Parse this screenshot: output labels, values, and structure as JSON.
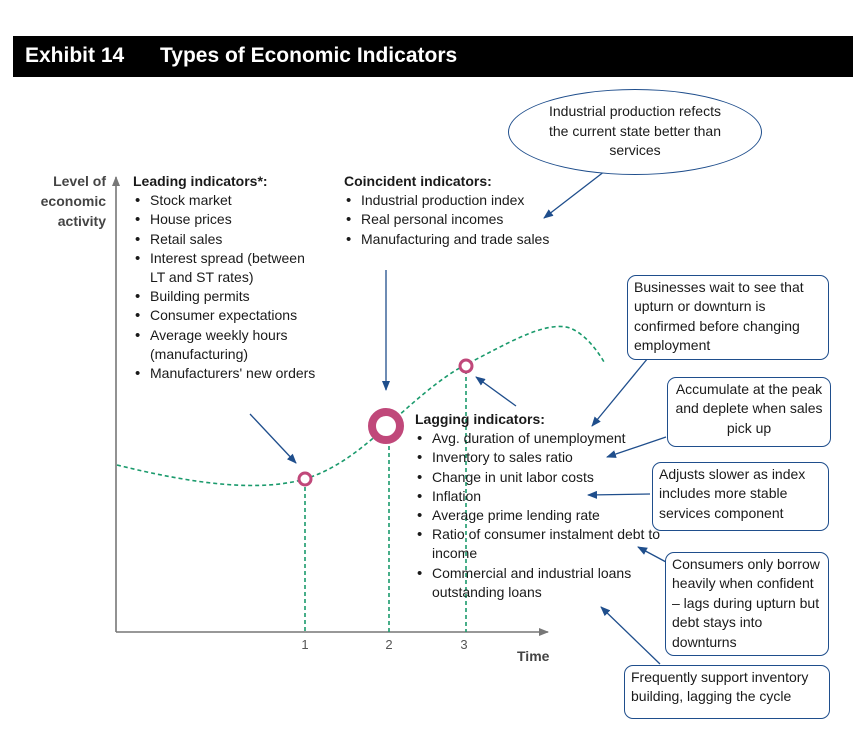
{
  "exhibit": {
    "number": "Exhibit 14",
    "title": "Types of Economic Indicators"
  },
  "y_axis_label": [
    "Level of",
    "economic",
    "activity"
  ],
  "x_axis_label": "Time",
  "x_ticks": [
    "1",
    "2",
    "3"
  ],
  "leading": {
    "title": "Leading indicators*:",
    "items": [
      "Stock market",
      "House prices",
      "Retail sales",
      "Interest spread (between LT and ST rates)",
      "Building permits",
      "Consumer expectations",
      "Average weekly hours (manufacturing)",
      "Manufacturers' new orders"
    ]
  },
  "coincident": {
    "title": "Coincident indicators:",
    "items": [
      "Industrial production index",
      "Real personal incomes",
      "Manufacturing and trade sales"
    ]
  },
  "lagging": {
    "title": "Lagging indicators:",
    "items": [
      "Avg. duration of unemployment",
      "Inventory to sales ratio",
      "Change in unit labor costs",
      "Inflation",
      "Average prime lending rate",
      "Ratio of consumer instalment debt to income",
      "Commercial and industrial loans outstanding loans"
    ]
  },
  "callouts": {
    "bubble": "Industrial production refects the current state better than services",
    "businesses_wait": "Businesses wait to see that upturn or downturn is confirmed before changing employment",
    "accumulate": "Accumulate at the peak and deplete when sales pick up",
    "adjusts_slower": "Adjusts slower as index includes more stable services component",
    "consumers": "Consumers only borrow heavily when confident – lags during upturn but debt stays into downturns",
    "frequently": "Frequently support inventory building, lagging the cycle"
  },
  "colors": {
    "curve": "#1a9a6c",
    "marker": "#c0487a",
    "arrow": "#1f4e8c",
    "axis": "#777777"
  }
}
